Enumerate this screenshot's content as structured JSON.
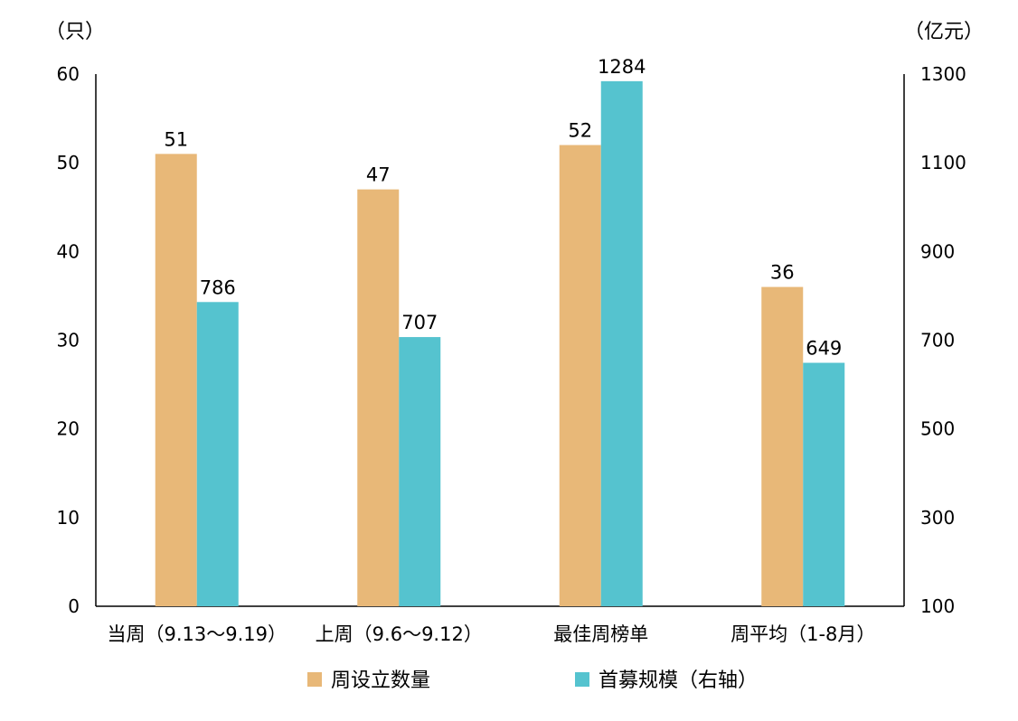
{
  "chart_data": {
    "type": "bar",
    "categories": [
      "当周（9.13～9.19）",
      "上周（9.6～9.12）",
      "最佳周榜单",
      "周平均（1-8月）"
    ],
    "series": [
      {
        "name": "周设立数量",
        "axis": "left",
        "color": "#E8B878",
        "values": [
          51,
          47,
          52,
          36
        ]
      },
      {
        "name": "首募规模（右轴）",
        "axis": "right",
        "color": "#55C3CF",
        "values": [
          786,
          707,
          1284,
          649
        ]
      }
    ],
    "y_left": {
      "unit": "（只）",
      "ylim": [
        0,
        60
      ],
      "ticks": [
        0,
        10,
        20,
        30,
        40,
        50,
        60
      ]
    },
    "y_right": {
      "unit": "（亿元）",
      "ylim": [
        100,
        1300
      ],
      "ticks": [
        100,
        300,
        500,
        700,
        900,
        1100,
        1300
      ]
    },
    "grid": false,
    "legend_position": "bottom"
  }
}
